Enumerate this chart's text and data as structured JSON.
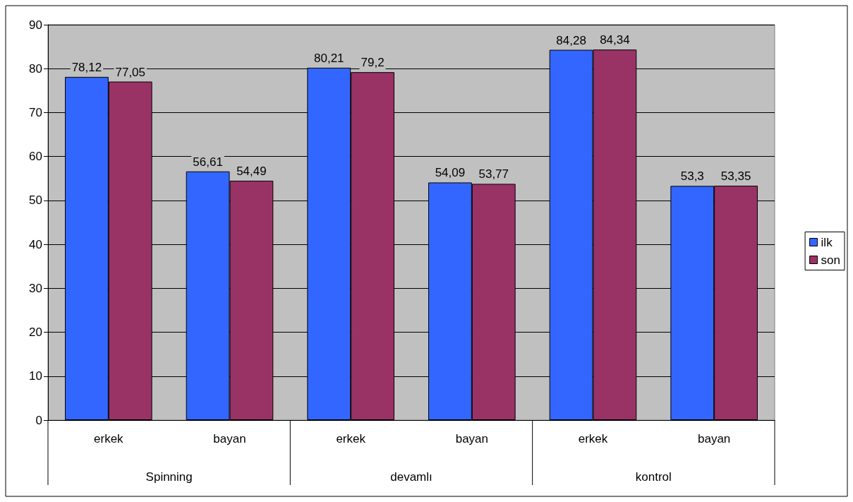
{
  "chart_data": {
    "type": "bar",
    "categories": [
      "erkek",
      "bayan",
      "erkek",
      "bayan",
      "erkek",
      "bayan"
    ],
    "series": [
      {
        "name": "ilk",
        "color": "#3366ff",
        "values": [
          78.12,
          56.61,
          80.21,
          54.09,
          84.28,
          53.3
        ],
        "value_labels": [
          "78,12",
          "56,61",
          "80,21",
          "54,09",
          "84,28",
          "53,3"
        ]
      },
      {
        "name": "son",
        "color": "#993366",
        "values": [
          77.05,
          54.49,
          79.2,
          53.77,
          84.34,
          53.35
        ],
        "value_labels": [
          "77,05",
          "54,49",
          "79,2",
          "53,77",
          "84,34",
          "53,35"
        ]
      }
    ],
    "annotations": [
      "Spinning",
      "devamlı",
      "kontrol"
    ],
    "ylim": [
      0,
      90
    ],
    "yticks": [
      0,
      10,
      20,
      30,
      40,
      50,
      60,
      70,
      80,
      90
    ],
    "grid": "y",
    "legend": "right"
  }
}
